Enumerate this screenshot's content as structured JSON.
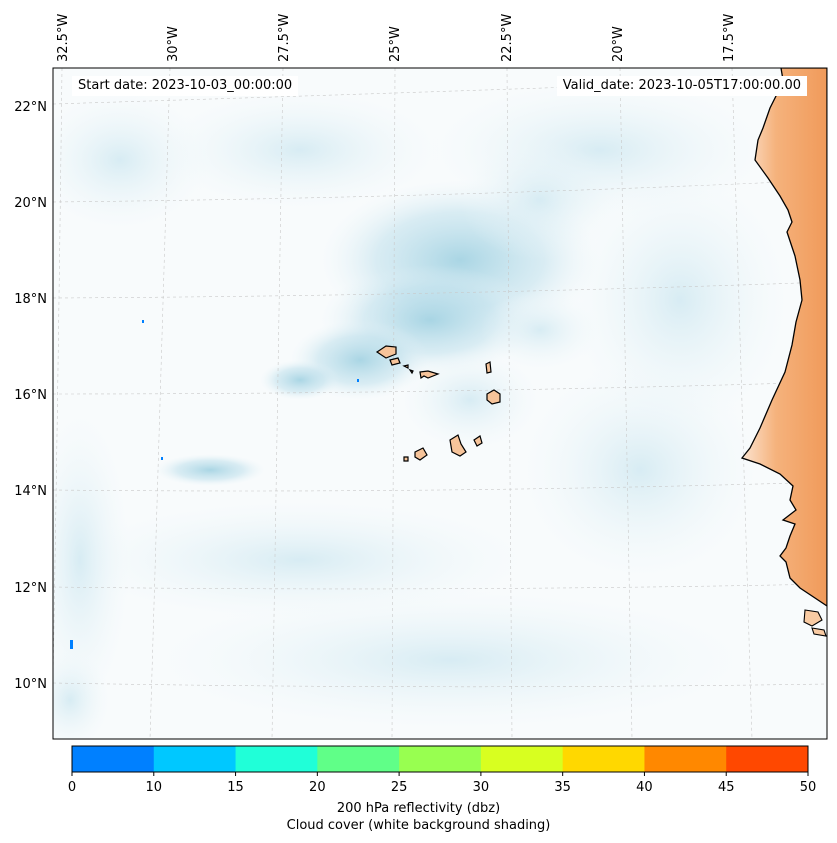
{
  "header": {
    "start_label": "Start date:",
    "start_value": "2023-10-03_00:00:00",
    "valid_label": "Valid_date:",
    "valid_value": "2023-10-05T17:00:00.00"
  },
  "axes": {
    "lon_labels": [
      "32.5°W",
      "30°W",
      "27.5°W",
      "25°W",
      "22.5°W",
      "20°W",
      "17.5°W"
    ],
    "lat_labels": [
      "22°N",
      "20°N",
      "18°N",
      "16°N",
      "14°N",
      "12°N",
      "10°N"
    ]
  },
  "colorbar": {
    "ticks": [
      "0",
      "10",
      "15",
      "20",
      "25",
      "30",
      "35",
      "40",
      "45",
      "50"
    ],
    "colors": [
      "#0080ff",
      "#00c8ff",
      "#20ffd8",
      "#60ff88",
      "#98ff50",
      "#d8ff20",
      "#ffd800",
      "#ff8800",
      "#ff4800"
    ],
    "label": "200 hPa reflectivity (dbz)",
    "sublabel": "Cloud cover (white background shading)"
  },
  "colors": {
    "cloud": "#a8d4e4",
    "land": "#f5b07a",
    "land_light": "#fbd8bb",
    "coast": "#000000"
  }
}
